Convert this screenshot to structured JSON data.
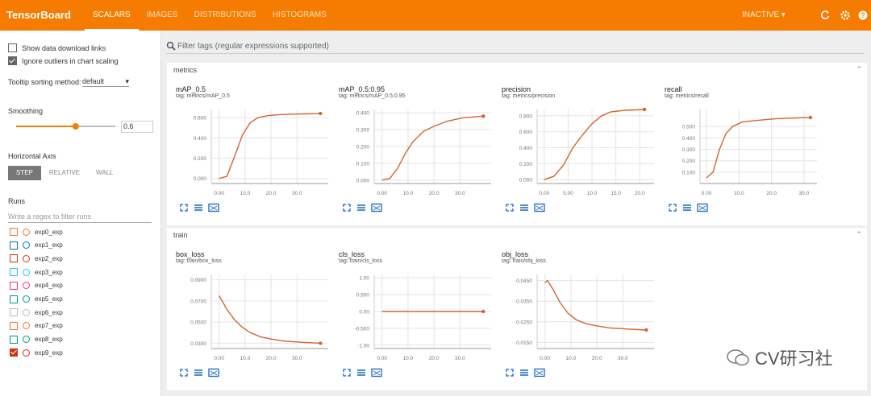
{
  "header": {
    "title": "TensorBoard",
    "tabs": [
      "SCALARS",
      "IMAGES",
      "DISTRIBUTIONS",
      "HISTOGRAMS"
    ],
    "active_tab": 0,
    "status": "INACTIVE"
  },
  "sidebar": {
    "show_download": "Show data download links",
    "show_download_checked": false,
    "ignore_outliers": "Ignore outliers in chart scaling",
    "ignore_outliers_checked": true,
    "tooltip_label": "Tooltip sorting method:",
    "tooltip_value": "default",
    "smoothing_label": "Smoothing",
    "smoothing": 0.6,
    "horizontal_axis_label": "Horizontal Axis",
    "axis_options": [
      "STEP",
      "RELATIVE",
      "WALL"
    ],
    "axis_selected": 0,
    "runs_label": "Runs",
    "runs_filter": "Write a regex to filter runs",
    "runs": [
      {
        "name": "exp0_exp",
        "color": "#ee7733",
        "checked": false
      },
      {
        "name": "exp1_exp",
        "color": "#0077bb",
        "checked": false
      },
      {
        "name": "exp2_exp",
        "color": "#cc3311",
        "checked": false
      },
      {
        "name": "exp3_exp",
        "color": "#33bbee",
        "checked": false
      },
      {
        "name": "exp4_exp",
        "color": "#ee3377",
        "checked": false
      },
      {
        "name": "exp5_exp",
        "color": "#009988",
        "checked": false
      },
      {
        "name": "exp6_exp",
        "color": "#bbbbbb",
        "checked": false
      },
      {
        "name": "exp7_exp",
        "color": "#ee7733",
        "checked": false
      },
      {
        "name": "exp8_exp",
        "color": "#009988",
        "checked": false
      },
      {
        "name": "exp9_exp",
        "color": "#cc3311",
        "checked": true
      }
    ]
  },
  "search": "Filter tags (regular expressions supported)",
  "sections": [
    {
      "name": "metrics",
      "charts": [
        {
          "type": "line",
          "title": "mAP_0.5",
          "tag": "tag: metrics/mAP_0.5",
          "color": "#d4652a",
          "x": [
            0,
            3,
            6,
            9,
            12,
            15,
            19,
            24,
            30,
            39
          ],
          "values": [
            0,
            0.02,
            0.22,
            0.43,
            0.55,
            0.6,
            0.62,
            0.63,
            0.635,
            0.64
          ],
          "xlim": [
            -3,
            42
          ],
          "ylim": [
            -0.05,
            0.68
          ],
          "xticks": [
            {
              "value": 0,
              "label": "0.00"
            },
            {
              "value": 10,
              "label": "10.0"
            },
            {
              "value": 20,
              "label": "20.0"
            },
            {
              "value": 30,
              "label": "30.0"
            }
          ],
          "yticks": [
            {
              "value": 0,
              "label": "0.000"
            },
            {
              "value": 0.2,
              "label": "0.200"
            },
            {
              "value": 0.4,
              "label": "0.400"
            },
            {
              "value": 0.6,
              "label": "0.600"
            }
          ]
        },
        {
          "type": "line",
          "title": "mAP_0.5:0.95",
          "tag": "tag: metrics/mAP_0.5:0.95",
          "color": "#d4652a",
          "x": [
            0,
            3,
            6,
            9,
            12,
            16,
            20,
            25,
            31,
            39
          ],
          "values": [
            0,
            0.01,
            0.07,
            0.16,
            0.23,
            0.29,
            0.32,
            0.35,
            0.37,
            0.38
          ],
          "xlim": [
            -3,
            42
          ],
          "ylim": [
            -0.02,
            0.42
          ],
          "xticks": [
            {
              "value": 0,
              "label": "0.00"
            },
            {
              "value": 10,
              "label": "10.0"
            },
            {
              "value": 20,
              "label": "20.0"
            },
            {
              "value": 30,
              "label": "30.0"
            }
          ],
          "yticks": [
            {
              "value": 0,
              "label": "0.000"
            },
            {
              "value": 0.1,
              "label": "0.100"
            },
            {
              "value": 0.2,
              "label": "0.200"
            },
            {
              "value": 0.3,
              "label": "0.300"
            },
            {
              "value": 0.4,
              "label": "0.400"
            }
          ]
        },
        {
          "type": "line",
          "title": "precision",
          "tag": "tag: metrics/precision",
          "color": "#d4652a",
          "x": [
            0,
            2,
            4,
            6,
            8,
            10,
            12,
            14,
            17,
            21
          ],
          "values": [
            0,
            0.04,
            0.18,
            0.4,
            0.56,
            0.7,
            0.8,
            0.85,
            0.87,
            0.88
          ],
          "xlim": [
            -1.5,
            23
          ],
          "ylim": [
            -0.05,
            0.88
          ],
          "xticks": [
            {
              "value": 0,
              "label": "0.00"
            },
            {
              "value": 5,
              "label": "5.00"
            },
            {
              "value": 10,
              "label": "10.0"
            },
            {
              "value": 15,
              "label": "15.0"
            },
            {
              "value": 20,
              "label": "20.0"
            }
          ],
          "yticks": [
            {
              "value": 0,
              "label": "0.000"
            },
            {
              "value": 0.2,
              "label": "0.200"
            },
            {
              "value": 0.4,
              "label": "0.400"
            },
            {
              "value": 0.6,
              "label": "0.600"
            },
            {
              "value": 0.8,
              "label": "0.800"
            }
          ]
        },
        {
          "type": "line",
          "title": "recall",
          "tag": "tag: metrics/recall",
          "color": "#d4652a",
          "x": [
            0,
            2,
            4,
            6,
            8,
            11,
            14,
            18,
            22,
            27,
            32
          ],
          "values": [
            0.05,
            0.1,
            0.3,
            0.44,
            0.5,
            0.54,
            0.55,
            0.56,
            0.57,
            0.575,
            0.58
          ],
          "xlim": [
            -2,
            34
          ],
          "ylim": [
            0,
            0.65
          ],
          "xticks": [
            {
              "value": 0,
              "label": "0.00"
            },
            {
              "value": 10,
              "label": "10.0"
            },
            {
              "value": 20,
              "label": "20.0"
            },
            {
              "value": 30,
              "label": "30.0"
            }
          ],
          "yticks": [
            {
              "value": 0.1,
              "label": "0.100"
            },
            {
              "value": 0.2,
              "label": "0.200"
            },
            {
              "value": 0.3,
              "label": "0.300"
            },
            {
              "value": 0.4,
              "label": "0.400"
            },
            {
              "value": 0.5,
              "label": "0.500"
            }
          ]
        }
      ]
    },
    {
      "name": "train",
      "charts": [
        {
          "type": "line",
          "title": "box_loss",
          "tag": "tag: train/box_loss",
          "color": "#d4652a",
          "x": [
            0,
            3,
            6,
            9,
            12,
            16,
            20,
            25,
            31,
            39
          ],
          "values": [
            0.075,
            0.062,
            0.052,
            0.045,
            0.04,
            0.036,
            0.034,
            0.032,
            0.031,
            0.03
          ],
          "xlim": [
            -3,
            42
          ],
          "ylim": [
            0.025,
            0.095
          ],
          "xticks": [
            {
              "value": 0,
              "label": "0.00"
            },
            {
              "value": 10,
              "label": "10.0"
            },
            {
              "value": 20,
              "label": "20.0"
            },
            {
              "value": 30,
              "label": "30.0"
            }
          ],
          "yticks": [
            {
              "value": 0.03,
              "label": "0.0300"
            },
            {
              "value": 0.05,
              "label": "0.0500"
            },
            {
              "value": 0.07,
              "label": "0.0700"
            },
            {
              "value": 0.09,
              "label": "0.0900"
            }
          ]
        },
        {
          "type": "line",
          "title": "cls_loss",
          "tag": "tag: train/cls_loss",
          "color": "#d4652a",
          "x": [
            0,
            39
          ],
          "values": [
            0,
            0
          ],
          "xlim": [
            -3,
            42
          ],
          "ylim": [
            -1.1,
            1.1
          ],
          "xticks": [
            {
              "value": 0,
              "label": "0.00"
            },
            {
              "value": 10,
              "label": "10.0"
            },
            {
              "value": 20,
              "label": "20.0"
            },
            {
              "value": 30,
              "label": "30.0"
            }
          ],
          "yticks": [
            {
              "value": -1,
              "label": "-1.00"
            },
            {
              "value": -0.5,
              "label": "-0.500"
            },
            {
              "value": 0,
              "label": "0.00"
            },
            {
              "value": 0.5,
              "label": "0.500"
            },
            {
              "value": 1,
              "label": "1.00"
            }
          ]
        },
        {
          "type": "line",
          "title": "obj_loss",
          "tag": "tag: train/obj_loss",
          "color": "#d4652a",
          "x": [
            0,
            1,
            3,
            6,
            9,
            12,
            16,
            20,
            25,
            31,
            39
          ],
          "values": [
            0.044,
            0.045,
            0.041,
            0.034,
            0.029,
            0.026,
            0.024,
            0.023,
            0.022,
            0.0215,
            0.021
          ],
          "xlim": [
            -3,
            42
          ],
          "ylim": [
            0.012,
            0.048
          ],
          "xticks": [
            {
              "value": 0,
              "label": "0.00"
            },
            {
              "value": 10,
              "label": "10.0"
            },
            {
              "value": 20,
              "label": "20.0"
            },
            {
              "value": 30,
              "label": "30.0"
            }
          ],
          "yticks": [
            {
              "value": 0.015,
              "label": "0.0150"
            },
            {
              "value": 0.025,
              "label": "0.0250"
            },
            {
              "value": 0.035,
              "label": "0.0350"
            },
            {
              "value": 0.045,
              "label": "0.0450"
            }
          ]
        }
      ]
    }
  ],
  "watermark": "CV研习社"
}
